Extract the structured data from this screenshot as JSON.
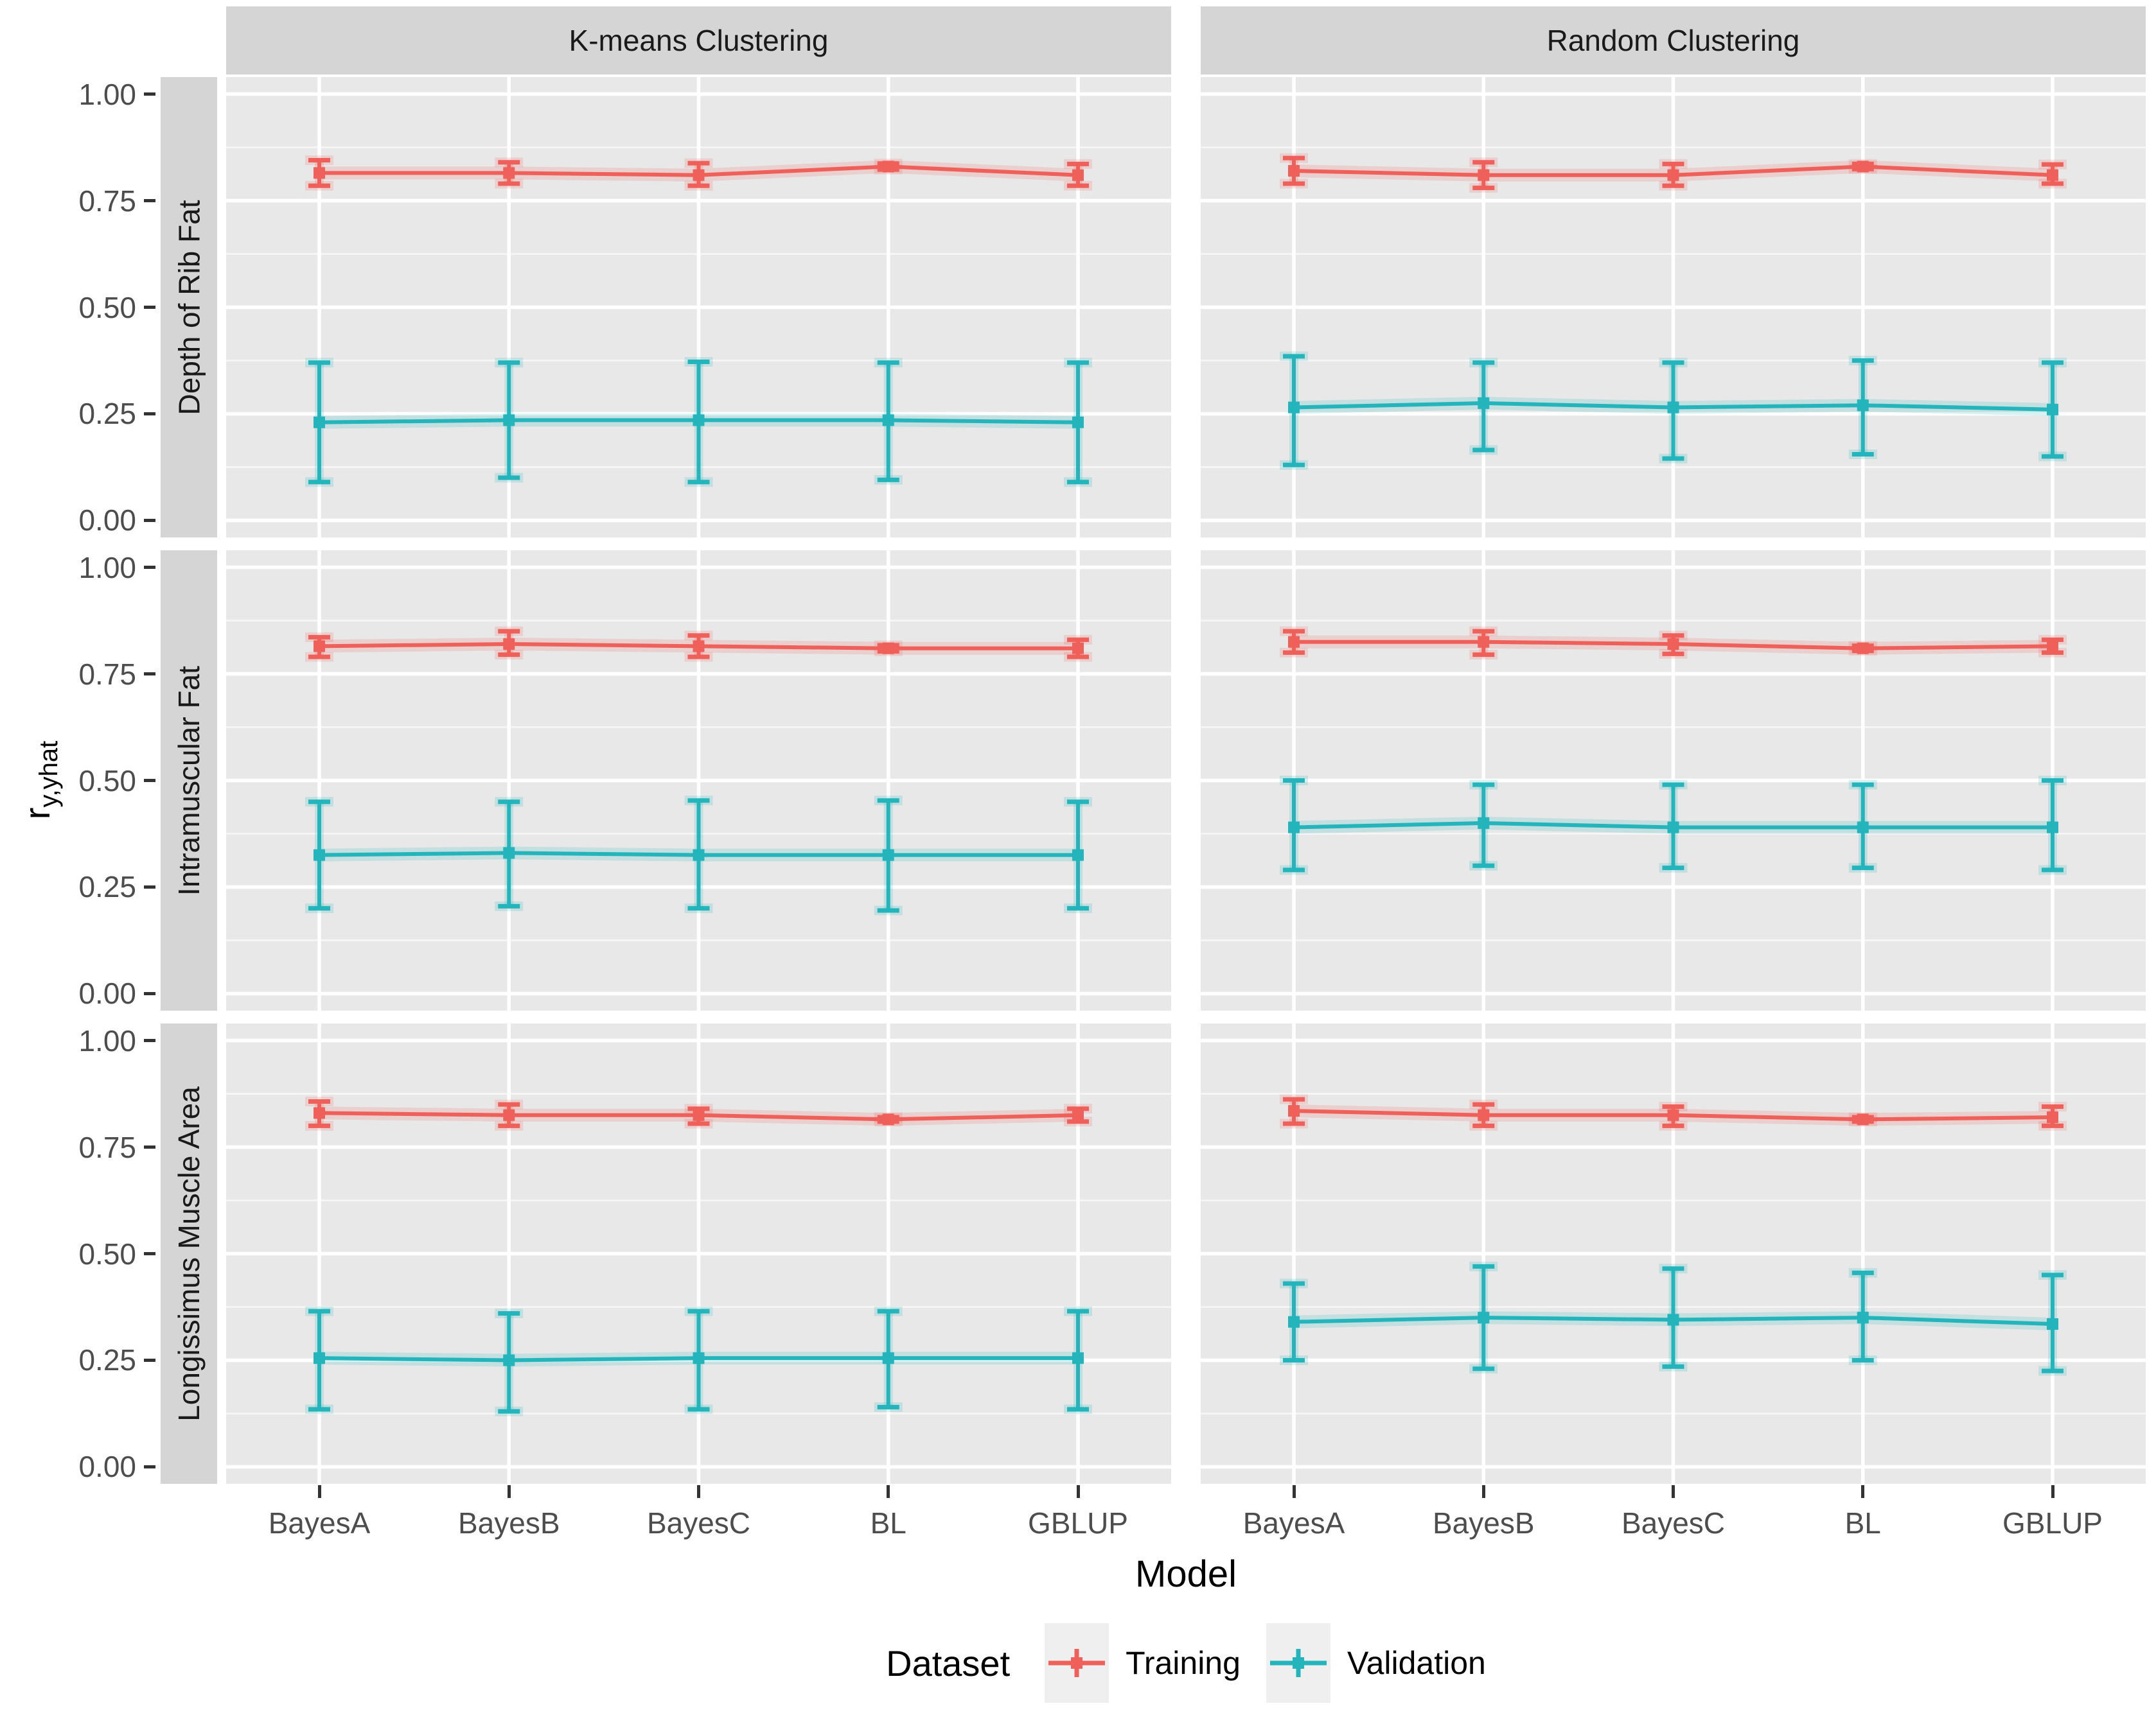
{
  "figure": {
    "col_facets": [
      "K-means Clustering",
      "Random Clustering"
    ],
    "row_facets": [
      "Depth of Rib Fat",
      "Intramuscular Fat",
      "Longissimus Muscle Area"
    ],
    "x_axis_title": "Model",
    "y_axis_title_base": "r",
    "y_axis_title_sub": "y,yhat",
    "y_tick_labels": [
      "1.00",
      "0.75",
      "0.50",
      "0.25",
      "0.00"
    ],
    "panel_bg": "#E8E8E8",
    "strip_bg": "#D5D5D5",
    "grid_color": "#FFFFFF",
    "tick_mark_color": "#333333",
    "tick_label_color": "#4D4D4D"
  },
  "legend": {
    "title": "Dataset",
    "items": [
      {
        "label": "Training",
        "color": "#F0605A"
      },
      {
        "label": "Validation",
        "color": "#23B5BB"
      }
    ]
  },
  "chart_data": {
    "type": "line",
    "x_categories": [
      "BayesA",
      "BayesB",
      "BayesC",
      "BL",
      "GBLUP"
    ],
    "xlabel": "Model",
    "ylabel": "r_y,yhat",
    "ylim": [
      -0.04,
      1.04
    ],
    "y_major_ticks": [
      0,
      0.25,
      0.5,
      0.75,
      1.0
    ],
    "y_minor_ticks": [
      0.125,
      0.375,
      0.625,
      0.875
    ],
    "grid": true,
    "legend_position": "bottom",
    "series_colors": {
      "Training": "#F0605A",
      "Validation": "#23B5BB"
    },
    "error_bars": true,
    "panels": [
      {
        "row": "Depth of Rib Fat",
        "col": "K-means Clustering",
        "series": [
          {
            "name": "Training",
            "mean": [
              0.815,
              0.815,
              0.81,
              0.83,
              0.81
            ],
            "lower": [
              0.785,
              0.79,
              0.785,
              0.823,
              0.785
            ],
            "upper": [
              0.845,
              0.84,
              0.838,
              0.837,
              0.836
            ]
          },
          {
            "name": "Validation",
            "mean": [
              0.23,
              0.235,
              0.235,
              0.235,
              0.23
            ],
            "lower": [
              0.09,
              0.1,
              0.09,
              0.095,
              0.09
            ],
            "upper": [
              0.37,
              0.37,
              0.372,
              0.37,
              0.37
            ]
          }
        ]
      },
      {
        "row": "Depth of Rib Fat",
        "col": "Random Clustering",
        "series": [
          {
            "name": "Training",
            "mean": [
              0.82,
              0.81,
              0.81,
              0.83,
              0.81
            ],
            "lower": [
              0.79,
              0.78,
              0.785,
              0.824,
              0.79
            ],
            "upper": [
              0.85,
              0.84,
              0.836,
              0.836,
              0.835
            ]
          },
          {
            "name": "Validation",
            "mean": [
              0.265,
              0.275,
              0.265,
              0.27,
              0.26
            ],
            "lower": [
              0.13,
              0.165,
              0.145,
              0.155,
              0.15
            ],
            "upper": [
              0.385,
              0.37,
              0.37,
              0.375,
              0.37
            ]
          }
        ]
      },
      {
        "row": "Intramuscular Fat",
        "col": "K-means Clustering",
        "series": [
          {
            "name": "Training",
            "mean": [
              0.815,
              0.82,
              0.815,
              0.81,
              0.81
            ],
            "lower": [
              0.79,
              0.795,
              0.79,
              0.803,
              0.79
            ],
            "upper": [
              0.836,
              0.85,
              0.84,
              0.817,
              0.83
            ]
          },
          {
            "name": "Validation",
            "mean": [
              0.325,
              0.33,
              0.325,
              0.325,
              0.325
            ],
            "lower": [
              0.2,
              0.205,
              0.2,
              0.195,
              0.2
            ],
            "upper": [
              0.45,
              0.45,
              0.453,
              0.453,
              0.45
            ]
          }
        ]
      },
      {
        "row": "Intramuscular Fat",
        "col": "Random Clustering",
        "series": [
          {
            "name": "Training",
            "mean": [
              0.825,
              0.825,
              0.82,
              0.81,
              0.815
            ],
            "lower": [
              0.8,
              0.795,
              0.797,
              0.804,
              0.8
            ],
            "upper": [
              0.85,
              0.85,
              0.84,
              0.816,
              0.83
            ]
          },
          {
            "name": "Validation",
            "mean": [
              0.39,
              0.4,
              0.39,
              0.39,
              0.39
            ],
            "lower": [
              0.29,
              0.3,
              0.295,
              0.295,
              0.29
            ],
            "upper": [
              0.5,
              0.49,
              0.49,
              0.49,
              0.5
            ]
          }
        ]
      },
      {
        "row": "Longissimus Muscle Area",
        "col": "K-means Clustering",
        "series": [
          {
            "name": "Training",
            "mean": [
              0.83,
              0.825,
              0.825,
              0.815,
              0.825
            ],
            "lower": [
              0.8,
              0.8,
              0.805,
              0.81,
              0.81
            ],
            "upper": [
              0.857,
              0.85,
              0.84,
              0.82,
              0.84
            ]
          },
          {
            "name": "Validation",
            "mean": [
              0.255,
              0.25,
              0.255,
              0.255,
              0.255
            ],
            "lower": [
              0.135,
              0.13,
              0.135,
              0.14,
              0.135
            ],
            "upper": [
              0.365,
              0.36,
              0.365,
              0.365,
              0.365
            ]
          }
        ]
      },
      {
        "row": "Longissimus Muscle Area",
        "col": "Random Clustering",
        "series": [
          {
            "name": "Training",
            "mean": [
              0.835,
              0.825,
              0.825,
              0.815,
              0.82
            ],
            "lower": [
              0.805,
              0.8,
              0.8,
              0.81,
              0.8
            ],
            "upper": [
              0.862,
              0.85,
              0.845,
              0.82,
              0.845
            ]
          },
          {
            "name": "Validation",
            "mean": [
              0.34,
              0.35,
              0.345,
              0.35,
              0.335
            ],
            "lower": [
              0.25,
              0.23,
              0.235,
              0.25,
              0.225
            ],
            "upper": [
              0.43,
              0.47,
              0.465,
              0.455,
              0.45
            ]
          }
        ]
      }
    ]
  }
}
